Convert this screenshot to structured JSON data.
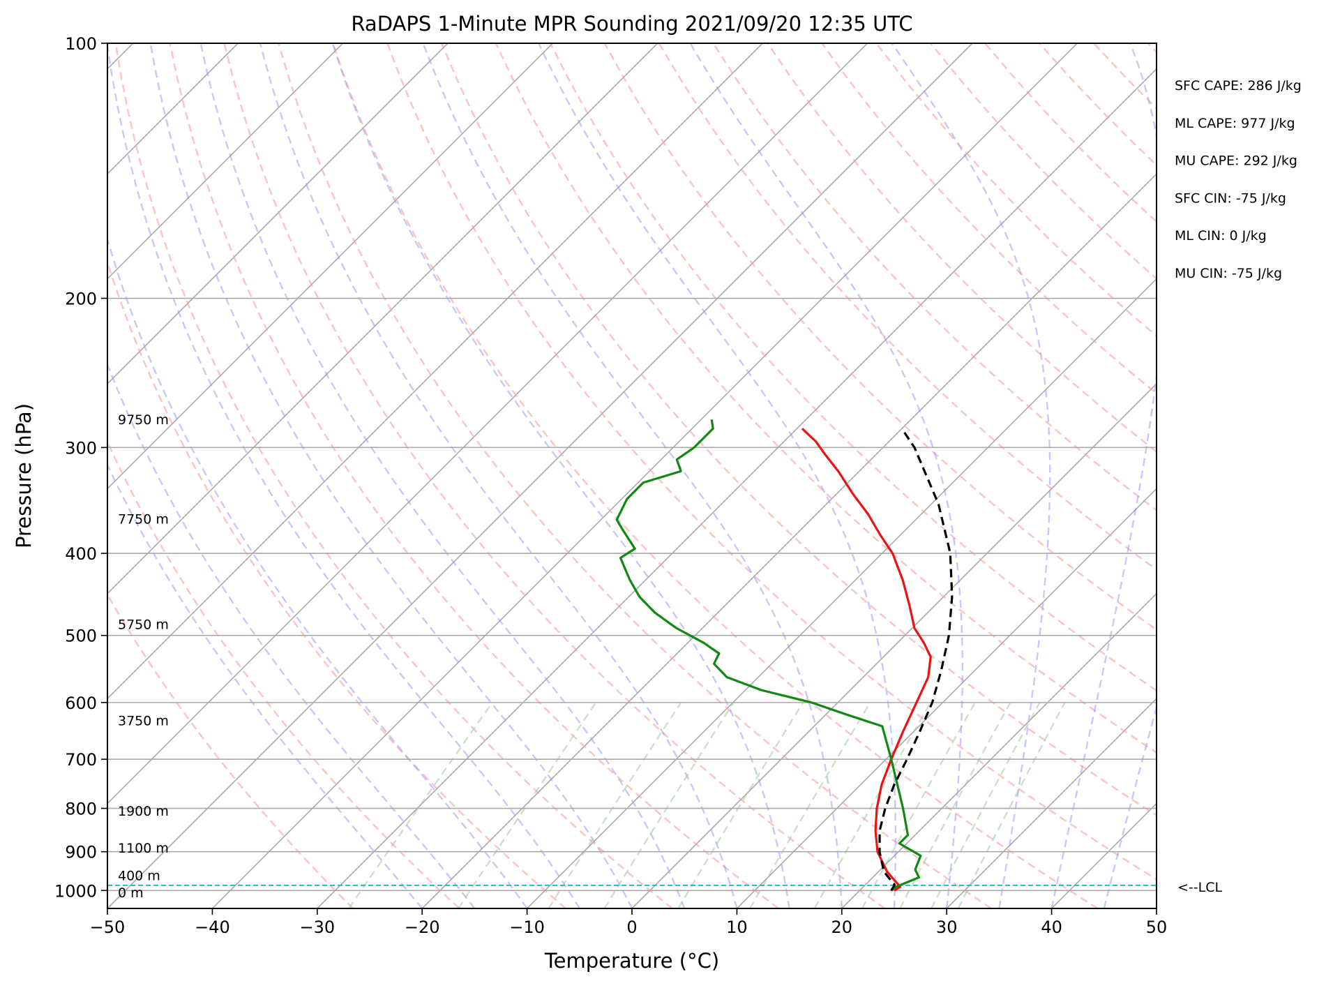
{
  "chart_data": {
    "type": "line",
    "title": "RaDAPS 1-Minute MPR Sounding 2021/09/20 12:35 UTC",
    "xlabel": "Temperature (°C)",
    "ylabel": "Pressure (hPa)",
    "xlim": [
      -50,
      50
    ],
    "ylim": [
      1050,
      100
    ],
    "y_scale": "log",
    "x_ticks": [
      -50,
      -40,
      -30,
      -20,
      -10,
      0,
      10,
      20,
      30,
      40,
      50
    ],
    "x_tick_labels": [
      "−50",
      "−40",
      "−30",
      "−20",
      "−10",
      "0",
      "10",
      "20",
      "30",
      "40",
      "50"
    ],
    "y_ticks": [
      100,
      200,
      300,
      400,
      500,
      600,
      700,
      800,
      900,
      1000
    ],
    "y_tick_labels": [
      "100",
      "200",
      "300",
      "400",
      "500",
      "600",
      "700",
      "800",
      "900",
      "1000"
    ],
    "grid": true,
    "skew": "45° skewed isotherms",
    "background_lines": {
      "isotherms": {
        "color": "#a9a9a9",
        "style": "solid"
      },
      "dry_adiabats": {
        "color": "#ff9999",
        "style": "dashed"
      },
      "moist_adiabats": {
        "color": "#9999ff",
        "style": "dashed"
      },
      "mixing_ratio_lines": {
        "color": "#99cc99",
        "style": "dashed"
      }
    },
    "series": [
      {
        "role": "temperature",
        "color": "#ee1111",
        "style": "solid",
        "points": [
          [
            1000,
            23.3
          ],
          [
            990,
            23.5
          ],
          [
            950,
            20.8
          ],
          [
            900,
            18.0
          ],
          [
            850,
            15.8
          ],
          [
            800,
            13.8
          ],
          [
            750,
            12.0
          ],
          [
            700,
            10.5
          ],
          [
            650,
            9.0
          ],
          [
            600,
            7.5
          ],
          [
            560,
            6.2
          ],
          [
            530,
            4.5
          ],
          [
            510,
            2.5
          ],
          [
            490,
            0.2
          ],
          [
            460,
            -2.5
          ],
          [
            430,
            -5.5
          ],
          [
            400,
            -9.0
          ],
          [
            380,
            -12.0
          ],
          [
            360,
            -15.0
          ],
          [
            340,
            -18.5
          ],
          [
            320,
            -22.0
          ],
          [
            305,
            -25.0
          ],
          [
            295,
            -27.0
          ],
          [
            285,
            -29.5
          ]
        ]
      },
      {
        "role": "dewpoint",
        "color": "#118811",
        "style": "solid",
        "points": [
          [
            1000,
            23.0
          ],
          [
            990,
            23.1
          ],
          [
            965,
            24.4
          ],
          [
            945,
            23.3
          ],
          [
            910,
            22.5
          ],
          [
            880,
            19.3
          ],
          [
            860,
            19.3
          ],
          [
            800,
            16.3
          ],
          [
            750,
            13.5
          ],
          [
            700,
            10.5
          ],
          [
            640,
            6.5
          ],
          [
            620,
            2.0
          ],
          [
            600,
            -2.5
          ],
          [
            580,
            -8.5
          ],
          [
            560,
            -13.0
          ],
          [
            540,
            -15.5
          ],
          [
            525,
            -16.0
          ],
          [
            510,
            -18.5
          ],
          [
            490,
            -22.5
          ],
          [
            470,
            -26.0
          ],
          [
            450,
            -29.0
          ],
          [
            430,
            -31.5
          ],
          [
            405,
            -34.5
          ],
          [
            395,
            -34.0
          ],
          [
            375,
            -37.0
          ],
          [
            365,
            -38.5
          ],
          [
            345,
            -39.5
          ],
          [
            330,
            -39.5
          ],
          [
            320,
            -37.0
          ],
          [
            310,
            -38.5
          ],
          [
            300,
            -38.0
          ],
          [
            285,
            -38.0
          ],
          [
            278,
            -39.0
          ]
        ]
      },
      {
        "role": "parcel profile",
        "color": "#000000",
        "style": "dashed",
        "points": [
          [
            1000,
            23.0
          ],
          [
            985,
            22.8
          ],
          [
            950,
            20.5
          ],
          [
            900,
            18.2
          ],
          [
            850,
            16.2
          ],
          [
            800,
            14.6
          ],
          [
            750,
            13.2
          ],
          [
            700,
            12.0
          ],
          [
            650,
            10.6
          ],
          [
            600,
            9.0
          ],
          [
            550,
            6.8
          ],
          [
            500,
            4.2
          ],
          [
            450,
            0.8
          ],
          [
            400,
            -3.5
          ],
          [
            350,
            -9.3
          ],
          [
            300,
            -17.0
          ],
          [
            285,
            -20.0
          ]
        ]
      }
    ],
    "lcl": {
      "pressure": 986,
      "label": "<--LCL",
      "color": "#17becf"
    },
    "height_labels": [
      {
        "pressure": 278,
        "text": "9750 m"
      },
      {
        "pressure": 364,
        "text": "7750 m"
      },
      {
        "pressure": 485,
        "text": "5750 m"
      },
      {
        "pressure": 630,
        "text": "3750 m"
      },
      {
        "pressure": 805,
        "text": "1900 m"
      },
      {
        "pressure": 890,
        "text": "1100 m"
      },
      {
        "pressure": 960,
        "text": "400 m"
      },
      {
        "pressure": 1005,
        "text": "0 m"
      }
    ],
    "indices": [
      "SFC CAPE: 286 J/kg",
      "ML CAPE: 977 J/kg",
      "MU CAPE: 292 J/kg",
      "SFC CIN: -75 J/kg",
      "ML CIN: 0 J/kg",
      "MU CIN: -75 J/kg"
    ]
  }
}
